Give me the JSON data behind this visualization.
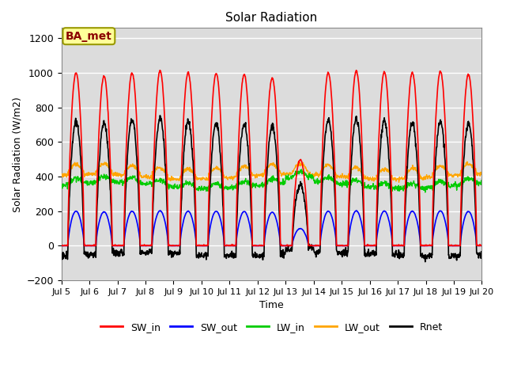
{
  "title": "Solar Radiation",
  "ylabel": "Solar Radiation (W/m2)",
  "xlabel": "Time",
  "annotation": "BA_met",
  "ylim": [
    -200,
    1260
  ],
  "yticks": [
    -200,
    0,
    200,
    400,
    600,
    800,
    1000,
    1200
  ],
  "start_day": 5,
  "end_day": 20,
  "n_days": 15,
  "dt_minutes": 15,
  "colors": {
    "SW_in": "#FF0000",
    "SW_out": "#0000FF",
    "LW_in": "#00CC00",
    "LW_out": "#FFA500",
    "Rnet": "#000000"
  },
  "legend_labels": [
    "SW_in",
    "SW_out",
    "LW_in",
    "LW_out",
    "Rnet"
  ],
  "title_fontsize": 11,
  "label_fontsize": 9,
  "tick_fontsize": 9,
  "annotation_fontsize": 10,
  "grid_color": "#FFFFFF",
  "bg_color": "#DCDCDC"
}
